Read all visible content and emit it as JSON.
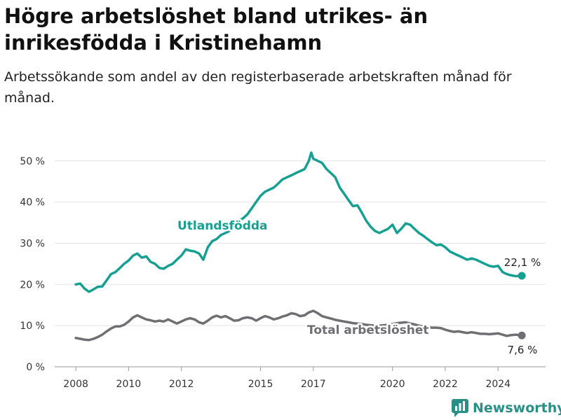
{
  "header": {
    "title": "Högre arbetslöshet bland utrikes- än inrikesfödda i Kristinehamn",
    "subtitle": "Arbetssökande som andel av den registerbaserade arbetskraften månad för månad."
  },
  "brand": {
    "name": "Newsworthy",
    "icon": "newsworthy-logo-icon",
    "color": "#2a8f87"
  },
  "chart_data": {
    "type": "line",
    "xlim": [
      2007.2,
      2025.8
    ],
    "ylim": [
      0,
      52
    ],
    "y_ticks": [
      0,
      10,
      20,
      30,
      40,
      50
    ],
    "y_tick_labels": [
      "0 %",
      "10 %",
      "20 %",
      "30 %",
      "40 %",
      "50 %"
    ],
    "x_ticks": [
      2008,
      2010,
      2012,
      2015,
      2017,
      2020,
      2022,
      2024
    ],
    "x_tick_labels": [
      "2008",
      "2010",
      "2012",
      "2015",
      "2017",
      "2020",
      "2022",
      "2024"
    ],
    "grid": "horizontal",
    "series": [
      {
        "name": "Utlandsfödda",
        "color": "#17a092",
        "end_label": "22,1 %",
        "points": [
          [
            2008.0,
            20.0
          ],
          [
            2008.17,
            20.2
          ],
          [
            2008.33,
            19.0
          ],
          [
            2008.5,
            18.2
          ],
          [
            2008.67,
            18.8
          ],
          [
            2008.83,
            19.4
          ],
          [
            2009.0,
            19.5
          ],
          [
            2009.17,
            21.0
          ],
          [
            2009.33,
            22.5
          ],
          [
            2009.5,
            23.0
          ],
          [
            2009.67,
            24.0
          ],
          [
            2009.83,
            25.0
          ],
          [
            2010.0,
            25.8
          ],
          [
            2010.17,
            27.0
          ],
          [
            2010.33,
            27.5
          ],
          [
            2010.5,
            26.5
          ],
          [
            2010.67,
            26.8
          ],
          [
            2010.83,
            25.5
          ],
          [
            2011.0,
            25.0
          ],
          [
            2011.17,
            24.0
          ],
          [
            2011.33,
            23.8
          ],
          [
            2011.5,
            24.5
          ],
          [
            2011.67,
            25.0
          ],
          [
            2011.83,
            26.0
          ],
          [
            2012.0,
            27.0
          ],
          [
            2012.17,
            28.5
          ],
          [
            2012.33,
            28.2
          ],
          [
            2012.5,
            28.0
          ],
          [
            2012.67,
            27.5
          ],
          [
            2012.83,
            26.0
          ],
          [
            2013.0,
            29.0
          ],
          [
            2013.17,
            30.5
          ],
          [
            2013.33,
            31.0
          ],
          [
            2013.5,
            32.0
          ],
          [
            2013.67,
            32.5
          ],
          [
            2013.83,
            33.0
          ],
          [
            2014.0,
            34.5
          ],
          [
            2014.17,
            35.5
          ],
          [
            2014.33,
            36.0
          ],
          [
            2014.5,
            37.0
          ],
          [
            2014.67,
            38.5
          ],
          [
            2014.83,
            40.0
          ],
          [
            2015.0,
            41.5
          ],
          [
            2015.17,
            42.5
          ],
          [
            2015.33,
            43.0
          ],
          [
            2015.5,
            43.5
          ],
          [
            2015.67,
            44.5
          ],
          [
            2015.83,
            45.5
          ],
          [
            2016.0,
            46.0
          ],
          [
            2016.17,
            46.5
          ],
          [
            2016.33,
            47.0
          ],
          [
            2016.5,
            47.5
          ],
          [
            2016.67,
            48.0
          ],
          [
            2016.83,
            50.0
          ],
          [
            2016.92,
            52.0
          ],
          [
            2017.0,
            50.5
          ],
          [
            2017.17,
            50.0
          ],
          [
            2017.33,
            49.5
          ],
          [
            2017.5,
            48.0
          ],
          [
            2017.67,
            47.0
          ],
          [
            2017.83,
            46.0
          ],
          [
            2018.0,
            43.5
          ],
          [
            2018.17,
            42.0
          ],
          [
            2018.33,
            40.5
          ],
          [
            2018.5,
            39.0
          ],
          [
            2018.67,
            39.2
          ],
          [
            2018.83,
            37.5
          ],
          [
            2019.0,
            35.5
          ],
          [
            2019.17,
            34.0
          ],
          [
            2019.33,
            33.0
          ],
          [
            2019.5,
            32.5
          ],
          [
            2019.67,
            33.0
          ],
          [
            2019.83,
            33.5
          ],
          [
            2020.0,
            34.5
          ],
          [
            2020.17,
            32.5
          ],
          [
            2020.33,
            33.5
          ],
          [
            2020.5,
            34.8
          ],
          [
            2020.67,
            34.5
          ],
          [
            2020.83,
            33.5
          ],
          [
            2021.0,
            32.5
          ],
          [
            2021.17,
            31.8
          ],
          [
            2021.33,
            31.0
          ],
          [
            2021.5,
            30.2
          ],
          [
            2021.67,
            29.5
          ],
          [
            2021.83,
            29.7
          ],
          [
            2022.0,
            29.0
          ],
          [
            2022.17,
            28.0
          ],
          [
            2022.33,
            27.5
          ],
          [
            2022.5,
            27.0
          ],
          [
            2022.67,
            26.5
          ],
          [
            2022.83,
            26.0
          ],
          [
            2023.0,
            26.3
          ],
          [
            2023.17,
            26.0
          ],
          [
            2023.33,
            25.5
          ],
          [
            2023.5,
            25.0
          ],
          [
            2023.67,
            24.5
          ],
          [
            2023.83,
            24.3
          ],
          [
            2024.0,
            24.5
          ],
          [
            2024.17,
            23.0
          ],
          [
            2024.33,
            22.5
          ],
          [
            2024.5,
            22.2
          ],
          [
            2024.67,
            22.0
          ],
          [
            2024.9,
            22.1
          ]
        ]
      },
      {
        "name": "Total arbetslöshet",
        "color": "#6e6e73",
        "end_label": "7,6 %",
        "points": [
          [
            2008.0,
            7.0
          ],
          [
            2008.17,
            6.8
          ],
          [
            2008.33,
            6.6
          ],
          [
            2008.5,
            6.5
          ],
          [
            2008.67,
            6.8
          ],
          [
            2008.83,
            7.2
          ],
          [
            2009.0,
            7.8
          ],
          [
            2009.17,
            8.6
          ],
          [
            2009.33,
            9.3
          ],
          [
            2009.5,
            9.8
          ],
          [
            2009.67,
            9.8
          ],
          [
            2009.83,
            10.2
          ],
          [
            2010.0,
            11.0
          ],
          [
            2010.17,
            12.0
          ],
          [
            2010.33,
            12.5
          ],
          [
            2010.5,
            12.0
          ],
          [
            2010.67,
            11.5
          ],
          [
            2010.83,
            11.3
          ],
          [
            2011.0,
            11.0
          ],
          [
            2011.17,
            11.2
          ],
          [
            2011.33,
            11.0
          ],
          [
            2011.5,
            11.5
          ],
          [
            2011.67,
            11.0
          ],
          [
            2011.83,
            10.5
          ],
          [
            2012.0,
            11.0
          ],
          [
            2012.17,
            11.5
          ],
          [
            2012.33,
            11.8
          ],
          [
            2012.5,
            11.5
          ],
          [
            2012.67,
            10.8
          ],
          [
            2012.83,
            10.5
          ],
          [
            2013.0,
            11.2
          ],
          [
            2013.17,
            12.0
          ],
          [
            2013.33,
            12.4
          ],
          [
            2013.5,
            12.0
          ],
          [
            2013.67,
            12.3
          ],
          [
            2013.83,
            11.8
          ],
          [
            2014.0,
            11.2
          ],
          [
            2014.17,
            11.3
          ],
          [
            2014.33,
            11.8
          ],
          [
            2014.5,
            12.0
          ],
          [
            2014.67,
            11.8
          ],
          [
            2014.83,
            11.2
          ],
          [
            2015.0,
            11.8
          ],
          [
            2015.17,
            12.3
          ],
          [
            2015.33,
            12.0
          ],
          [
            2015.5,
            11.5
          ],
          [
            2015.67,
            11.8
          ],
          [
            2015.83,
            12.2
          ],
          [
            2016.0,
            12.5
          ],
          [
            2016.17,
            13.0
          ],
          [
            2016.33,
            12.8
          ],
          [
            2016.5,
            12.3
          ],
          [
            2016.67,
            12.5
          ],
          [
            2016.83,
            13.2
          ],
          [
            2017.0,
            13.6
          ],
          [
            2017.17,
            13.0
          ],
          [
            2017.33,
            12.3
          ],
          [
            2017.5,
            12.0
          ],
          [
            2017.67,
            11.7
          ],
          [
            2017.83,
            11.4
          ],
          [
            2018.0,
            11.2
          ],
          [
            2018.17,
            11.0
          ],
          [
            2018.33,
            10.8
          ],
          [
            2018.5,
            10.6
          ],
          [
            2018.67,
            10.5
          ],
          [
            2018.83,
            10.4
          ],
          [
            2019.0,
            10.2
          ],
          [
            2019.17,
            10.1
          ],
          [
            2019.33,
            10.0
          ],
          [
            2019.5,
            10.0
          ],
          [
            2019.67,
            10.1
          ],
          [
            2019.83,
            10.2
          ],
          [
            2020.0,
            10.4
          ],
          [
            2020.17,
            10.6
          ],
          [
            2020.33,
            10.7
          ],
          [
            2020.5,
            10.8
          ],
          [
            2020.67,
            10.5
          ],
          [
            2020.83,
            10.3
          ],
          [
            2021.0,
            10.0
          ],
          [
            2021.17,
            9.8
          ],
          [
            2021.33,
            9.6
          ],
          [
            2021.5,
            9.5
          ],
          [
            2021.67,
            9.5
          ],
          [
            2021.83,
            9.4
          ],
          [
            2022.0,
            9.0
          ],
          [
            2022.17,
            8.7
          ],
          [
            2022.33,
            8.5
          ],
          [
            2022.5,
            8.6
          ],
          [
            2022.67,
            8.4
          ],
          [
            2022.83,
            8.2
          ],
          [
            2023.0,
            8.4
          ],
          [
            2023.17,
            8.2
          ],
          [
            2023.33,
            8.0
          ],
          [
            2023.5,
            8.0
          ],
          [
            2023.67,
            7.9
          ],
          [
            2023.83,
            8.0
          ],
          [
            2024.0,
            8.1
          ],
          [
            2024.17,
            7.8
          ],
          [
            2024.33,
            7.5
          ],
          [
            2024.5,
            7.7
          ],
          [
            2024.67,
            7.8
          ],
          [
            2024.9,
            7.6
          ]
        ]
      }
    ]
  }
}
